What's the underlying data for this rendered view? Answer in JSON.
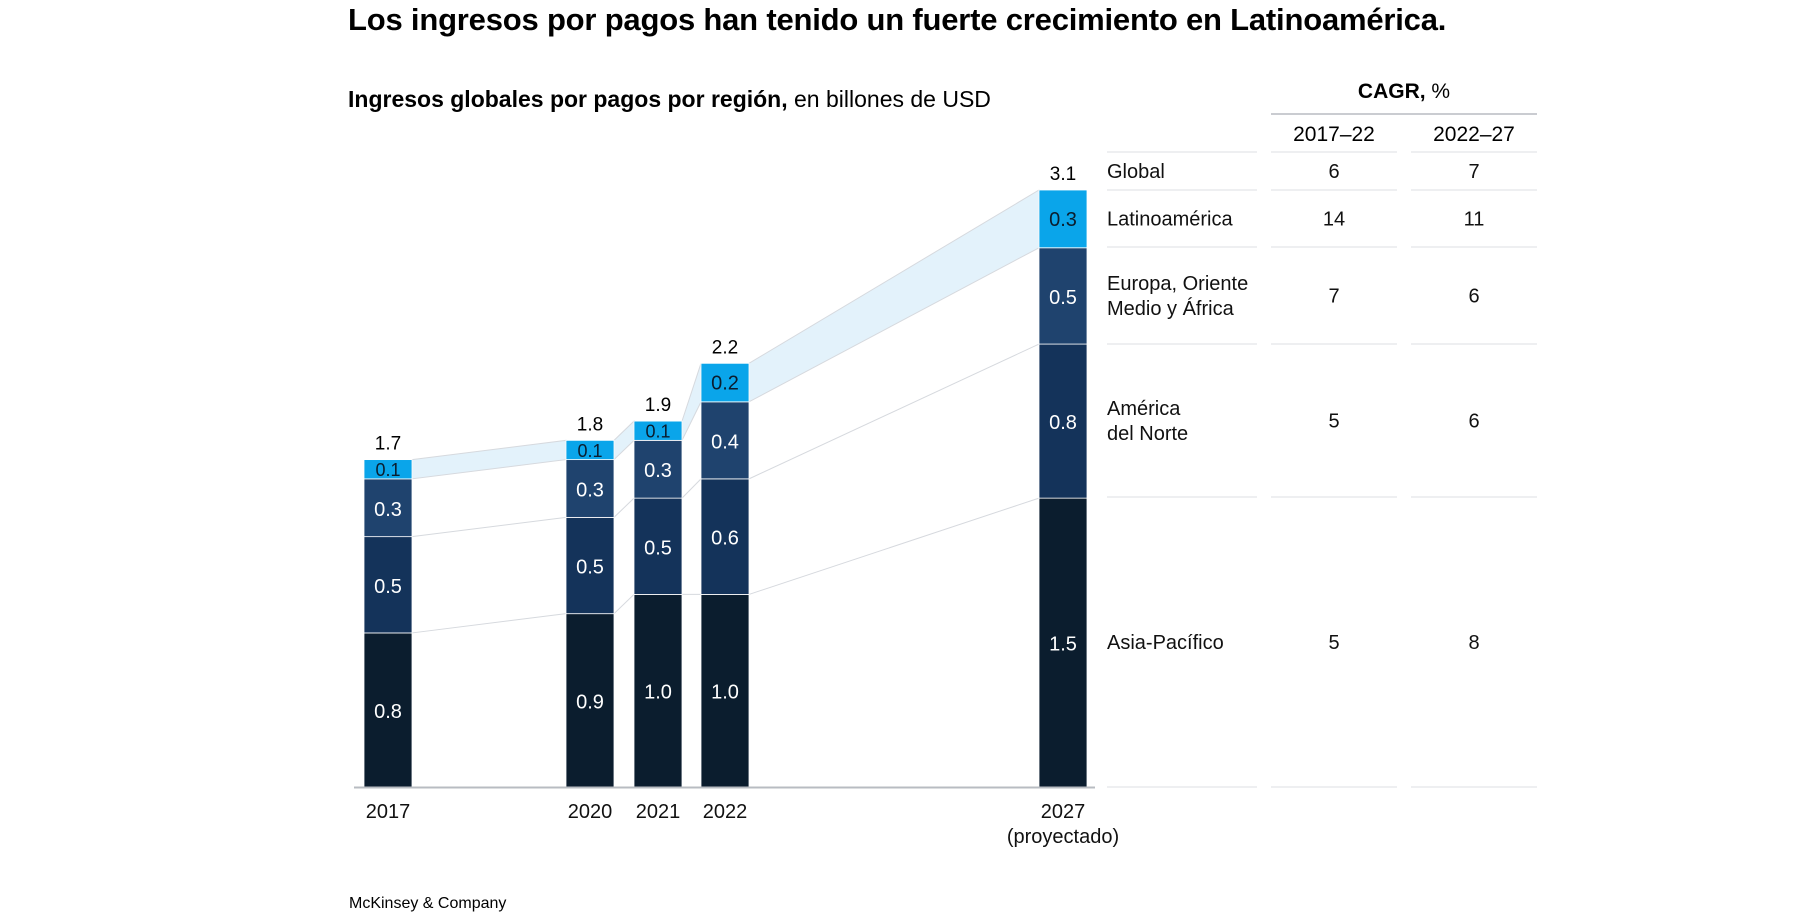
{
  "title": "Los ingresos por pagos han tenido un fuerte crecimiento en Latinoamérica.",
  "subtitle_bold": "Ingresos globales por pagos por región,",
  "subtitle_rest": " en billones de USD",
  "footer": "McKinsey & Company",
  "colors": {
    "asia_pacifico": "#0b1d2e",
    "america_del_norte": "#14335a",
    "europa": "#1f436e",
    "latinoamerica": "#0aa5ea",
    "latam_band": "#e3f2fb",
    "connector": "#d6d9de",
    "axis": "#b8bcc2",
    "rule": "#dcdfe3"
  },
  "cagr": {
    "title_bold": "CAGR,",
    "title_rest": " %",
    "columns": [
      "2017–22",
      "2022–27"
    ],
    "rows": [
      {
        "label": [
          "Global"
        ],
        "values": [
          "6",
          "7"
        ]
      },
      {
        "label": [
          "Latinoamérica"
        ],
        "values": [
          "14",
          "11"
        ]
      },
      {
        "label": [
          "Europa, Oriente",
          "Medio y África"
        ],
        "values": [
          "7",
          "6"
        ]
      },
      {
        "label": [
          "América",
          "del Norte"
        ],
        "values": [
          "5",
          "6"
        ]
      },
      {
        "label": [
          "Asia-Pacífico"
        ],
        "values": [
          "5",
          "8"
        ]
      }
    ]
  },
  "chart_data": {
    "type": "bar",
    "stacked": true,
    "title": "Ingresos globales por pagos por región, en billones de USD",
    "xlabel": "",
    "ylabel": "",
    "ylim": [
      0,
      3.1
    ],
    "grid": false,
    "categories": [
      "2017",
      "2020",
      "2021",
      "2022",
      "2027"
    ],
    "category_sublabels": [
      "",
      "",
      "",
      "",
      "(proyectado)"
    ],
    "totals": [
      "1.7",
      "1.8",
      "1.9",
      "2.2",
      "3.1"
    ],
    "series": [
      {
        "name": "Asia-Pacífico",
        "key": "asia_pacifico",
        "values": [
          0.8,
          0.9,
          1.0,
          1.0,
          1.5
        ],
        "labels": [
          "0.8",
          "0.9",
          "1.0",
          "1.0",
          "1.5"
        ]
      },
      {
        "name": "América del Norte",
        "key": "america_del_norte",
        "values": [
          0.5,
          0.5,
          0.5,
          0.6,
          0.8
        ],
        "labels": [
          "0.5",
          "0.5",
          "0.5",
          "0.6",
          "0.8"
        ]
      },
      {
        "name": "Europa, Oriente Medio y África",
        "key": "europa",
        "values": [
          0.3,
          0.3,
          0.3,
          0.4,
          0.5
        ],
        "labels": [
          "0.3",
          "0.3",
          "0.3",
          "0.4",
          "0.5"
        ]
      },
      {
        "name": "Latinoamérica",
        "key": "latinoamerica",
        "values": [
          0.1,
          0.1,
          0.1,
          0.2,
          0.3
        ],
        "labels": [
          "0.1",
          "0.1",
          "0.1",
          "0.2",
          "0.3"
        ]
      }
    ]
  }
}
